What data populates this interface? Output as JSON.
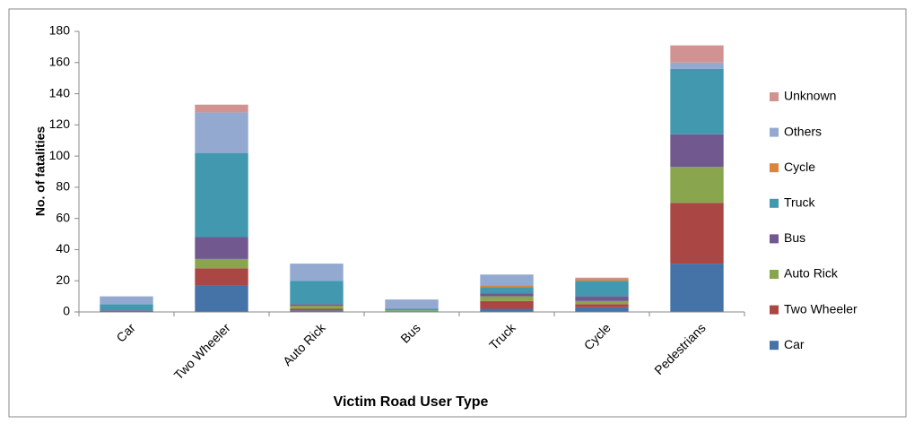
{
  "chart_data": {
    "type": "stacked_bar",
    "xlabel": "Victim Road User Type",
    "ylabel": "No. of fatalities",
    "categories": [
      "Car",
      "Two Wheeler",
      "Auto Rick",
      "Bus",
      "Truck",
      "Cycle",
      "Pedestrians"
    ],
    "series": [
      {
        "name": "Car",
        "color": "#4572a7",
        "values": [
          0,
          17,
          1,
          0,
          2,
          3,
          31
        ]
      },
      {
        "name": "Two Wheeler",
        "color": "#aa4643",
        "values": [
          0,
          11,
          1,
          0,
          5,
          2,
          39
        ]
      },
      {
        "name": "Auto Rick",
        "color": "#89a54e",
        "values": [
          0,
          6,
          2,
          1,
          3,
          2,
          23
        ]
      },
      {
        "name": "Bus",
        "color": "#71588f",
        "values": [
          1,
          14,
          1,
          0,
          2,
          3,
          21
        ]
      },
      {
        "name": "Truck",
        "color": "#4198af",
        "values": [
          4,
          54,
          15,
          1,
          4,
          10,
          42
        ]
      },
      {
        "name": "Cycle",
        "color": "#db843d",
        "values": [
          0,
          0,
          0,
          0,
          1,
          1,
          0
        ]
      },
      {
        "name": "Others",
        "color": "#93a9cf",
        "values": [
          5,
          26,
          11,
          6,
          7,
          0,
          4
        ]
      },
      {
        "name": "Unknown",
        "color": "#d19392",
        "values": [
          0,
          5,
          0,
          0,
          0,
          1,
          11
        ]
      }
    ],
    "ylim": [
      0,
      180
    ],
    "yticks": [
      0,
      20,
      40,
      60,
      80,
      100,
      120,
      140,
      160,
      180
    ],
    "grid": false,
    "legend": "right"
  }
}
